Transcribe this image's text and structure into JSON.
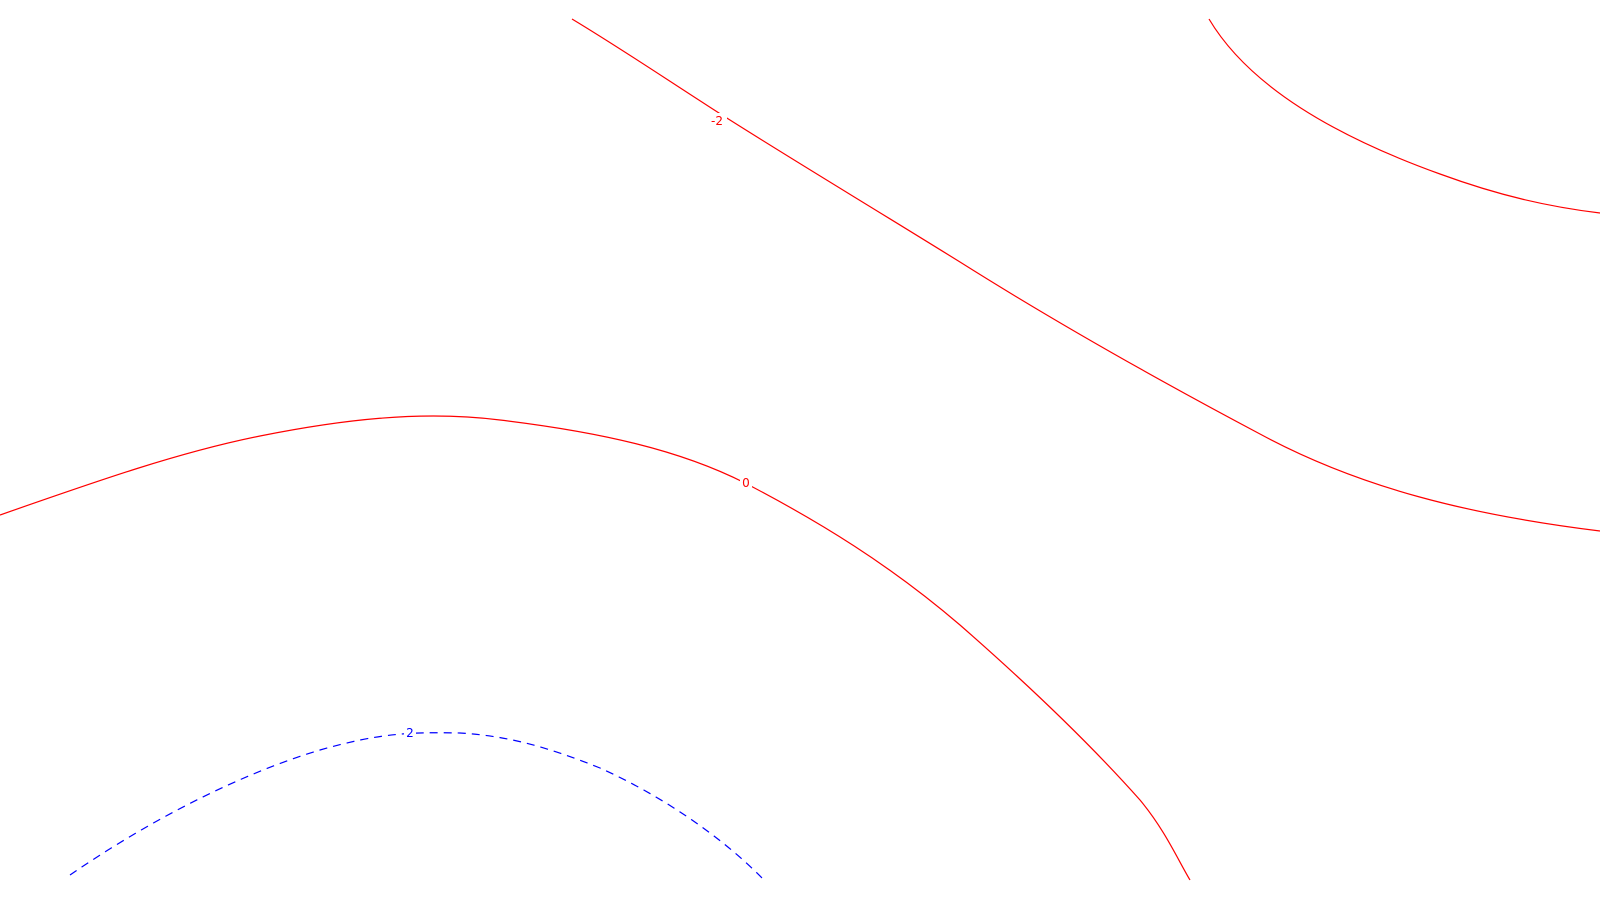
{
  "chart_data": {
    "type": "contour",
    "title": "",
    "xlabel": "",
    "ylabel": "",
    "grid": false,
    "axes_visible": false,
    "colors": {
      "positive": "#ff0000",
      "negative": "#0000ff",
      "background": "#ffffff"
    },
    "levels": [
      {
        "name": "contour-minus-2-upper",
        "level": -2,
        "label": "-2",
        "color": "#ff0000",
        "dashed": false,
        "labeled": true
      },
      {
        "name": "contour-minus-2-right",
        "level": -2,
        "label": "-2",
        "color": "#ff0000",
        "dashed": false,
        "labeled": false
      },
      {
        "name": "contour-0",
        "level": 0,
        "label": "0",
        "color": "#ff0000",
        "dashed": false,
        "labeled": true
      },
      {
        "name": "contour-2",
        "level": 2,
        "label": "2",
        "color": "#0000ff",
        "dashed": true,
        "labeled": true
      }
    ]
  }
}
